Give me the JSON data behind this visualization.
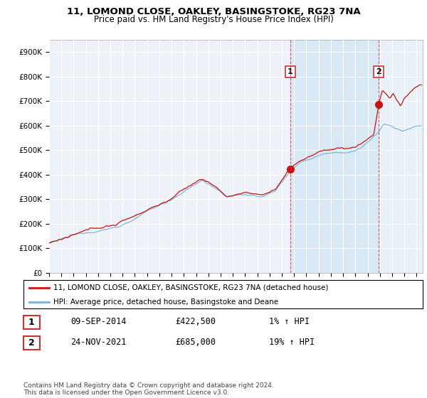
{
  "title": "11, LOMOND CLOSE, OAKLEY, BASINGSTOKE, RG23 7NA",
  "subtitle": "Price paid vs. HM Land Registry's House Price Index (HPI)",
  "ylabel_ticks": [
    "£0",
    "£100K",
    "£200K",
    "£300K",
    "£400K",
    "£500K",
    "£600K",
    "£700K",
    "£800K",
    "£900K"
  ],
  "ytick_values": [
    0,
    100000,
    200000,
    300000,
    400000,
    500000,
    600000,
    700000,
    800000,
    900000
  ],
  "ylim": [
    0,
    950000
  ],
  "xlim_start": 1995.0,
  "xlim_end": 2025.5,
  "xtick_years": [
    1995,
    1996,
    1997,
    1998,
    1999,
    2000,
    2001,
    2002,
    2003,
    2004,
    2005,
    2006,
    2007,
    2008,
    2009,
    2010,
    2011,
    2012,
    2013,
    2014,
    2015,
    2016,
    2017,
    2018,
    2019,
    2020,
    2021,
    2022,
    2023,
    2024,
    2025
  ],
  "hpi_color": "#7ab0d4",
  "price_color": "#cc1111",
  "sale1_x": 2014.69,
  "sale1_y": 422500,
  "sale2_x": 2021.9,
  "sale2_y": 685000,
  "shade1_color": "#d8e8f5",
  "shade2_color": "#e8f0f8",
  "vline_color": "#cc3333",
  "legend_entry1": "11, LOMOND CLOSE, OAKLEY, BASINGSTOKE, RG23 7NA (detached house)",
  "legend_entry2": "HPI: Average price, detached house, Basingstoke and Deane",
  "table_rows": [
    {
      "num": "1",
      "date": "09-SEP-2014",
      "price": "£422,500",
      "change": "1% ↑ HPI"
    },
    {
      "num": "2",
      "date": "24-NOV-2021",
      "price": "£685,000",
      "change": "19% ↑ HPI"
    }
  ],
  "footnote": "Contains HM Land Registry data © Crown copyright and database right 2024.\nThis data is licensed under the Open Government Licence v3.0.",
  "background_color": "#ffffff",
  "plot_bg_color": "#eef2f8"
}
